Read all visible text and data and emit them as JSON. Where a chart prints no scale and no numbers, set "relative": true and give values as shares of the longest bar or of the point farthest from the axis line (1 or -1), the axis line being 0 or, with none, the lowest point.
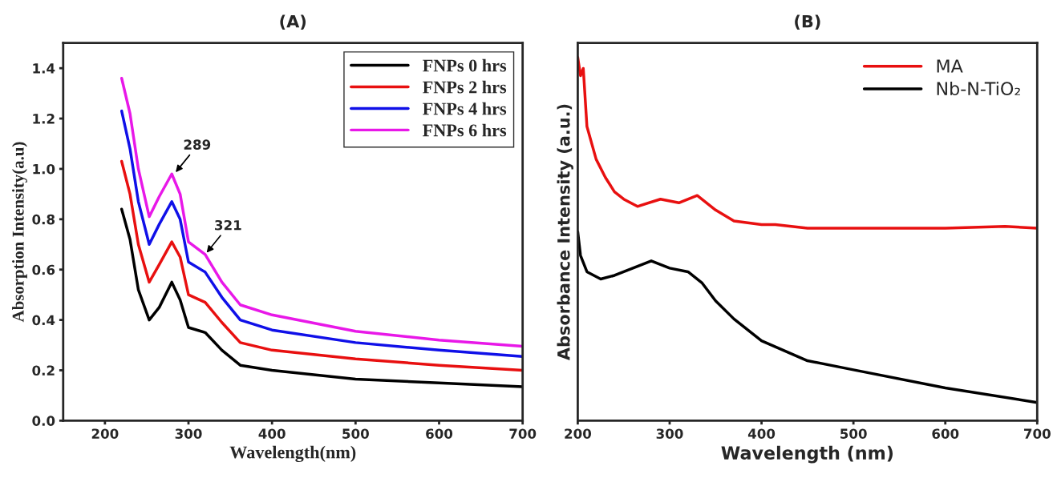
{
  "chart_data": [
    {
      "type": "line",
      "title": "(A)",
      "xlabel": "Wavelength(nm)",
      "ylabel": "Absorption Intensity(a.u)",
      "xlim": [
        150,
        700
      ],
      "ylim": [
        0,
        1.5
      ],
      "xticks": [
        200,
        300,
        400,
        500,
        600,
        700
      ],
      "yticks": [
        {
          "value": 0,
          "label": "0.0"
        },
        0.2,
        0.4,
        0.6,
        0.8,
        {
          "value": 1,
          "label": "1.0"
        },
        1.2,
        1.4
      ],
      "legend": "top right",
      "grid": false,
      "x": [
        220,
        230,
        240,
        253,
        265,
        280,
        290,
        300,
        320,
        340,
        362,
        400,
        500,
        600,
        700
      ],
      "series": [
        {
          "name": "FNPs 0 hrs",
          "color": "#000000",
          "values": [
            0.84,
            0.72,
            0.52,
            0.4,
            0.45,
            0.55,
            0.48,
            0.37,
            0.35,
            0.28,
            0.22,
            0.2,
            0.165,
            0.15,
            0.135
          ]
        },
        {
          "name": "FNPs 2 hrs",
          "color": "#e81010",
          "values": [
            1.03,
            0.9,
            0.7,
            0.55,
            0.62,
            0.71,
            0.65,
            0.5,
            0.47,
            0.39,
            0.31,
            0.28,
            0.245,
            0.22,
            0.2
          ]
        },
        {
          "name": "FNPs 4 hrs",
          "color": "#1010e8",
          "values": [
            1.23,
            1.08,
            0.87,
            0.7,
            0.78,
            0.87,
            0.8,
            0.63,
            0.59,
            0.49,
            0.4,
            0.36,
            0.31,
            0.28,
            0.255
          ]
        },
        {
          "name": "FNPs 6 hrs",
          "color": "#e818e8",
          "values": [
            1.36,
            1.22,
            1.0,
            0.81,
            0.89,
            0.98,
            0.9,
            0.71,
            0.66,
            0.55,
            0.46,
            0.42,
            0.355,
            0.32,
            0.295
          ]
        }
      ],
      "annotations": [
        {
          "text": "289",
          "x": 283,
          "y": 0.98
        },
        {
          "text": "321",
          "x": 320,
          "y": 0.66
        }
      ]
    },
    {
      "type": "line",
      "title": "(B)",
      "xlabel": "Wavelength (nm)",
      "ylabel": "Absorbance Intensity (a.u.)",
      "xlim": [
        200,
        700
      ],
      "xticks": [
        200,
        300,
        400,
        500,
        600,
        700
      ],
      "relative": true,
      "legend": "top right",
      "grid": false,
      "series": [
        {
          "name": "MA",
          "color": "#e81010",
          "x": [
            200,
            203,
            206,
            210,
            220,
            230,
            240,
            250,
            265,
            290,
            310,
            330,
            350,
            370,
            400,
            415,
            450,
            500,
            600,
            665,
            700
          ],
          "values": [
            1.0,
            0.95,
            0.97,
            0.81,
            0.72,
            0.67,
            0.63,
            0.61,
            0.59,
            0.61,
            0.6,
            0.62,
            0.58,
            0.55,
            0.54,
            0.54,
            0.53,
            0.53,
            0.53,
            0.535,
            0.53
          ]
        },
        {
          "name": "Nb-N-TiO₂",
          "color": "#000000",
          "x": [
            200,
            203,
            210,
            225,
            240,
            260,
            280,
            300,
            320,
            335,
            350,
            370,
            400,
            450,
            500,
            600,
            700
          ],
          "values": [
            0.52,
            0.455,
            0.41,
            0.39,
            0.4,
            0.42,
            0.44,
            0.42,
            0.41,
            0.38,
            0.33,
            0.28,
            0.22,
            0.165,
            0.14,
            0.09,
            0.05
          ]
        }
      ]
    }
  ]
}
